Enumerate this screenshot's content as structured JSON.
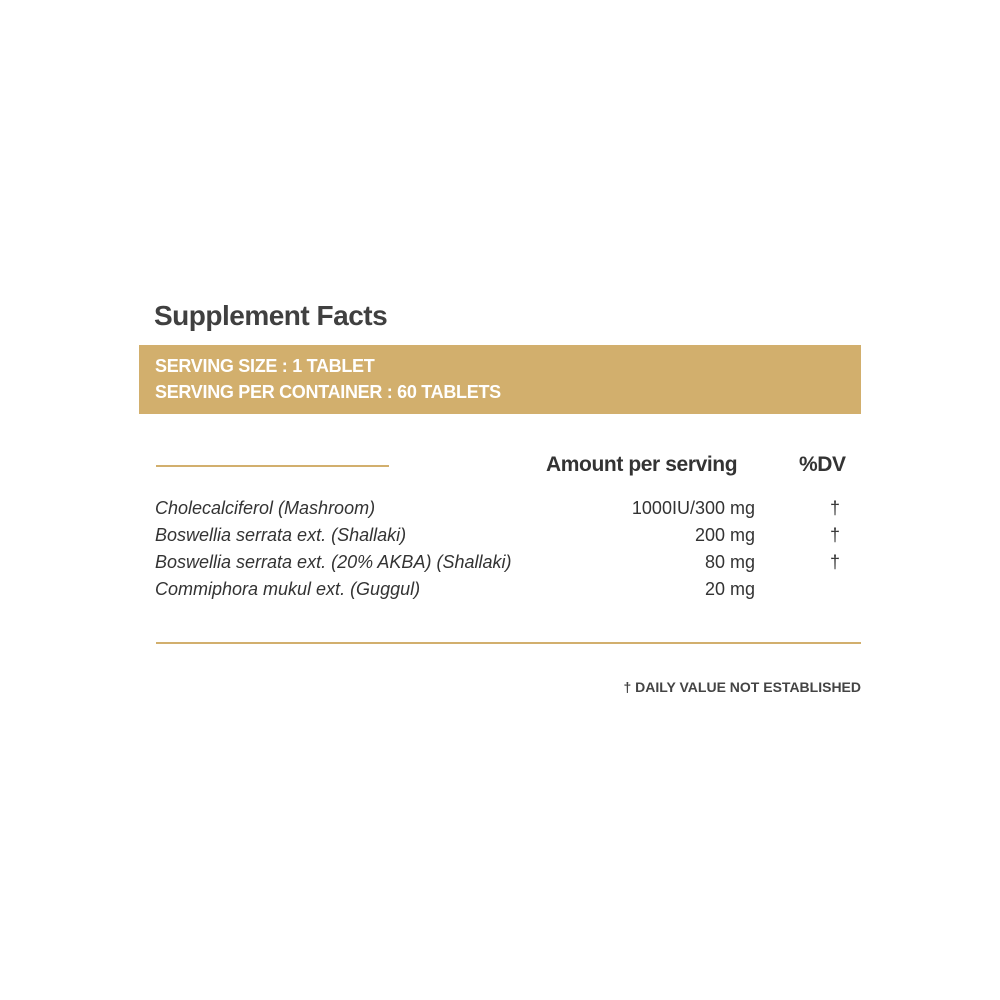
{
  "title": "Supplement Facts",
  "serving": {
    "size": "SERVING SIZE : 1 TABLET",
    "per_container": "SERVING PER CONTAINER : 60 TABLETS"
  },
  "headers": {
    "amount": "Amount per serving",
    "dv": "%DV"
  },
  "rows": [
    {
      "name": "Cholecalciferol (Mashroom)",
      "amount": "1000IU/300 mg",
      "dv": "†"
    },
    {
      "name": "Boswellia serrata ext. (Shallaki)",
      "amount": "200 mg",
      "dv": "†"
    },
    {
      "name": "Boswellia serrata ext. (20% AKBA) (Shallaki)",
      "amount": "80 mg",
      "dv": "†"
    },
    {
      "name": "Commiphora mukul ext. (Guggul)",
      "amount": "20 mg",
      "dv": ""
    }
  ],
  "footnote": "† DAILY VALUE NOT ESTABLISHED",
  "colors": {
    "accent": "#d2af6d",
    "text": "#3d3d3d"
  }
}
